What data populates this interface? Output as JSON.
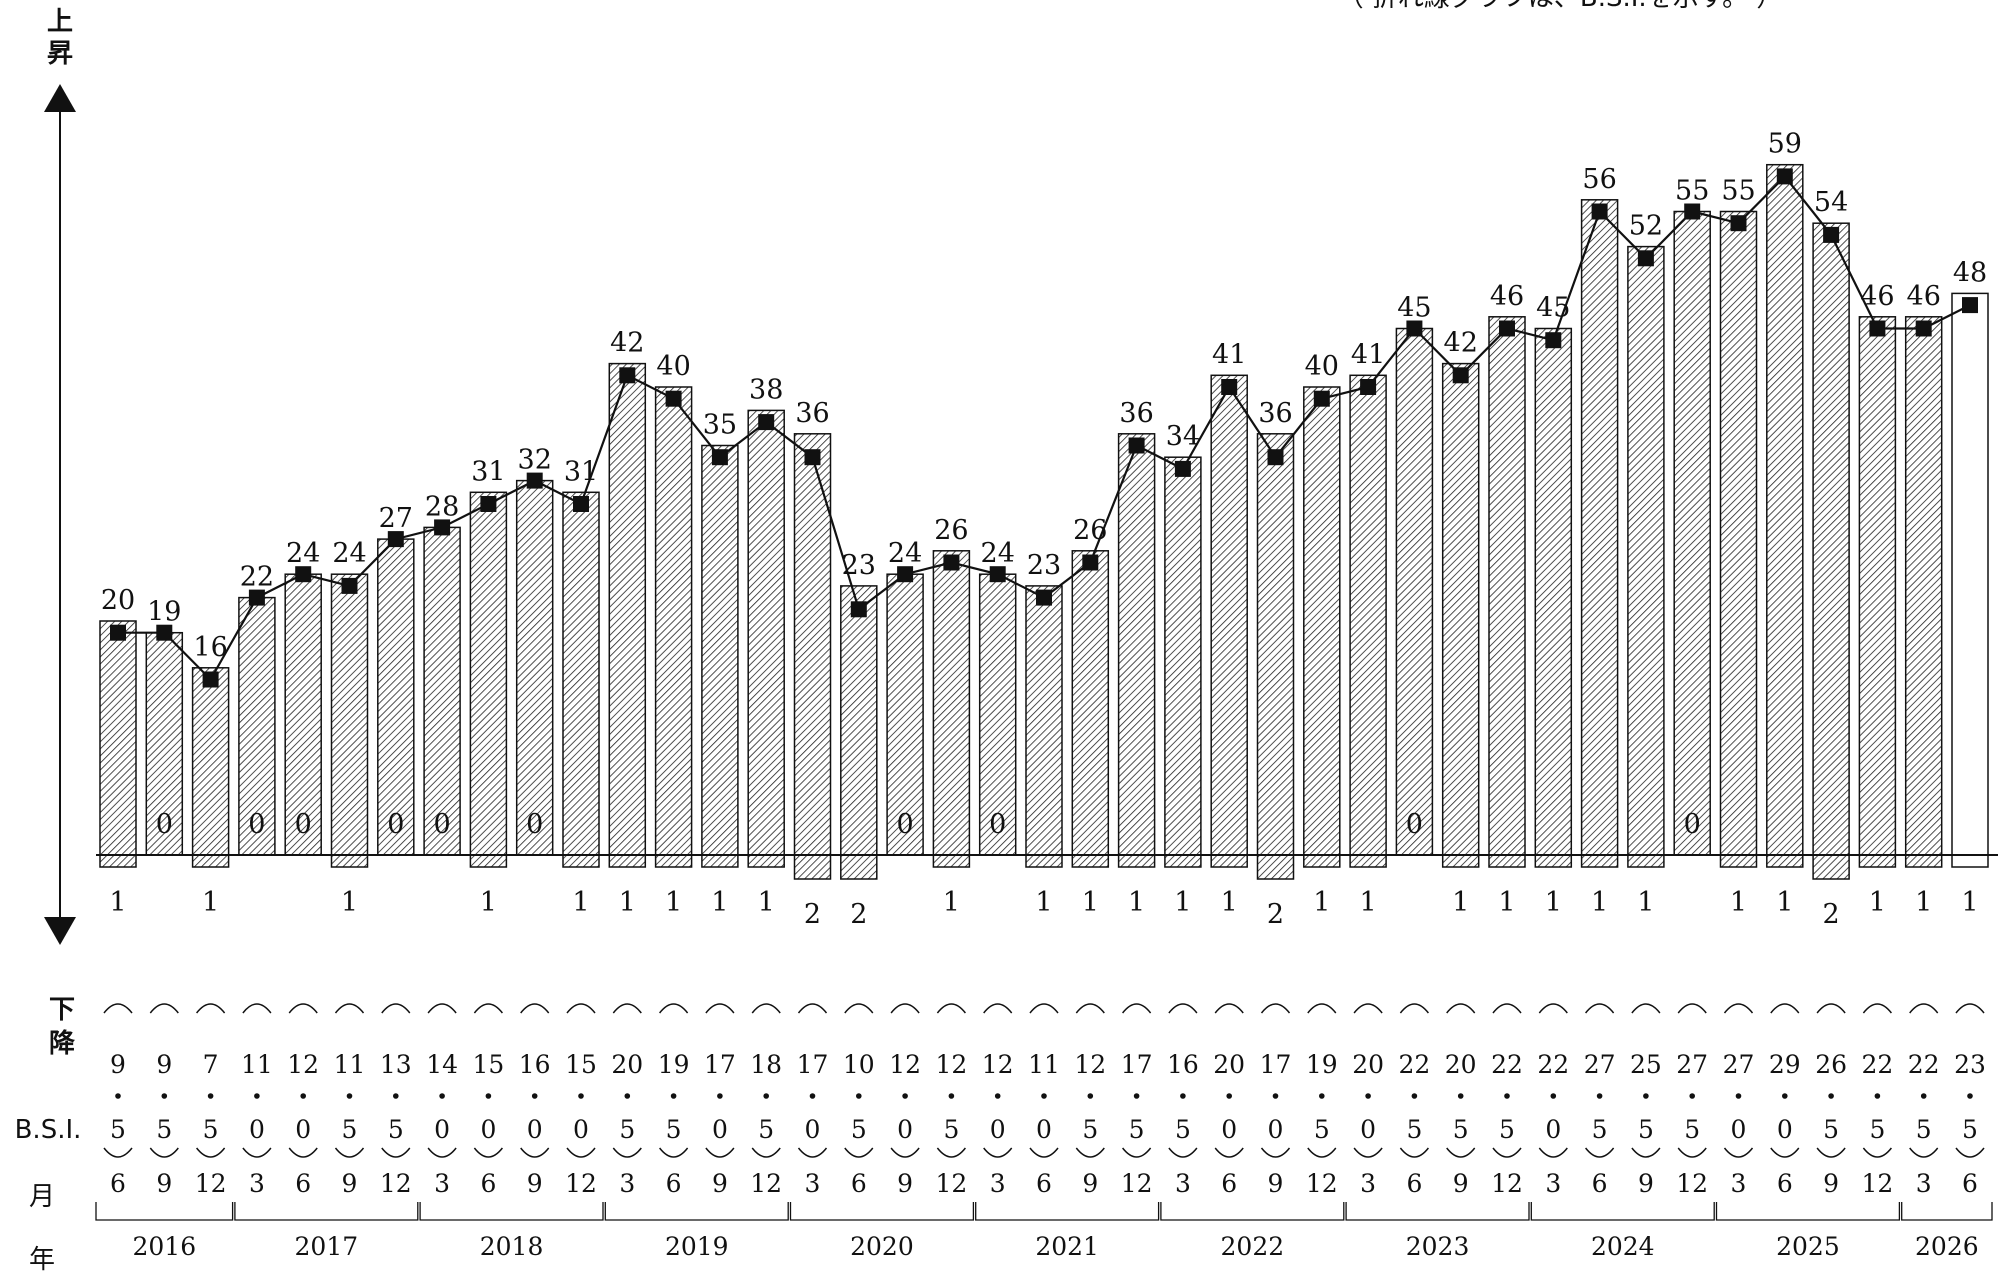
{
  "labels": {
    "up_line1": "上",
    "up_line2": "昇",
    "down_line1": "下",
    "down_line2": "降",
    "bsi": "B.S.I.",
    "month": "月",
    "year": "年",
    "note": "（ 折れ線グラフは、B.S.I.を示す。 ）"
  },
  "chart_data": {
    "type": "bar",
    "note": "折れ線グラフは、B.S.I.を示す。",
    "categories": [
      "2016-6",
      "2016-9",
      "2016-12",
      "2017-3",
      "2017-6",
      "2017-9",
      "2017-12",
      "2018-3",
      "2018-6",
      "2018-9",
      "2018-12",
      "2019-3",
      "2019-6",
      "2019-9",
      "2019-12",
      "2020-3",
      "2020-6",
      "2020-9",
      "2020-12",
      "2021-3",
      "2021-6",
      "2021-9",
      "2021-12",
      "2022-3",
      "2022-6",
      "2022-9",
      "2022-12",
      "2023-3",
      "2023-6",
      "2023-9",
      "2023-12",
      "2024-3",
      "2024-6",
      "2024-9",
      "2024-12",
      "2025-3",
      "2025-6",
      "2025-9",
      "2025-12",
      "2026-3",
      "2026-6"
    ],
    "months": [
      "6",
      "9",
      "12",
      "3",
      "6",
      "9",
      "12",
      "3",
      "6",
      "9",
      "12",
      "3",
      "6",
      "9",
      "12",
      "3",
      "6",
      "9",
      "12",
      "3",
      "6",
      "9",
      "12",
      "3",
      "6",
      "9",
      "12",
      "3",
      "6",
      "9",
      "12",
      "3",
      "6",
      "9",
      "12",
      "3",
      "6",
      "9",
      "12",
      "3",
      "6"
    ],
    "years": [
      {
        "label": "2016",
        "from": 0,
        "to": 2
      },
      {
        "label": "2017",
        "from": 3,
        "to": 6
      },
      {
        "label": "2018",
        "from": 7,
        "to": 10
      },
      {
        "label": "2019",
        "from": 11,
        "to": 14
      },
      {
        "label": "2020",
        "from": 15,
        "to": 18
      },
      {
        "label": "2021",
        "from": 19,
        "to": 22
      },
      {
        "label": "2022",
        "from": 23,
        "to": 26
      },
      {
        "label": "2023",
        "from": 27,
        "to": 30
      },
      {
        "label": "2024",
        "from": 31,
        "to": 34
      },
      {
        "label": "2025",
        "from": 35,
        "to": 38
      },
      {
        "label": "2026",
        "from": 39,
        "to": 40
      }
    ],
    "series": [
      {
        "values": [
          20,
          19,
          16,
          22,
          24,
          24,
          27,
          28,
          31,
          32,
          31,
          42,
          40,
          35,
          38,
          36,
          23,
          24,
          26,
          24,
          23,
          26,
          36,
          34,
          41,
          36,
          40,
          41,
          45,
          42,
          46,
          45,
          56,
          52,
          55,
          55,
          59,
          54,
          46,
          46,
          48
        ]
      },
      {
        "values": [
          1,
          0,
          1,
          0,
          0,
          1,
          0,
          0,
          1,
          0,
          1,
          1,
          1,
          1,
          1,
          2,
          2,
          0,
          1,
          0,
          1,
          1,
          1,
          1,
          1,
          2,
          1,
          1,
          0,
          1,
          1,
          1,
          1,
          1,
          0,
          1,
          1,
          2,
          1,
          1,
          1
        ]
      },
      {
        "values": [
          9.5,
          9.5,
          7.5,
          11.0,
          12.0,
          11.5,
          13.5,
          14.0,
          15.0,
          16.0,
          15.0,
          20.5,
          19.5,
          17.0,
          18.5,
          17.0,
          10.5,
          12.0,
          12.5,
          12.0,
          11.0,
          12.5,
          17.5,
          16.5,
          20.0,
          17.0,
          19.5,
          20.0,
          22.5,
          20.5,
          22.5,
          22.0,
          27.5,
          25.5,
          27.5,
          27.0,
          29.0,
          26.5,
          22.5,
          22.5,
          23.5
        ]
      }
    ],
    "bsi_text": [
      "9.5",
      "9.5",
      "7.5",
      "11.0",
      "12.0",
      "11.5",
      "13.5",
      "14.0",
      "15.0",
      "16.0",
      "15.0",
      "20.5",
      "19.5",
      "17.0",
      "18.5",
      "17.0",
      "10.5",
      "12.0",
      "12.5",
      "12.0",
      "11.0",
      "12.5",
      "17.5",
      "16.5",
      "20.0",
      "17.0",
      "19.5",
      "20.0",
      "22.5",
      "20.5",
      "22.5",
      "22.0",
      "27.5",
      "25.5",
      "27.5",
      "27.0",
      "29.0",
      "26.5",
      "22.5",
      "22.5",
      "23.5"
    ],
    "forecast_index": 40,
    "grid": false,
    "legend": "none"
  }
}
